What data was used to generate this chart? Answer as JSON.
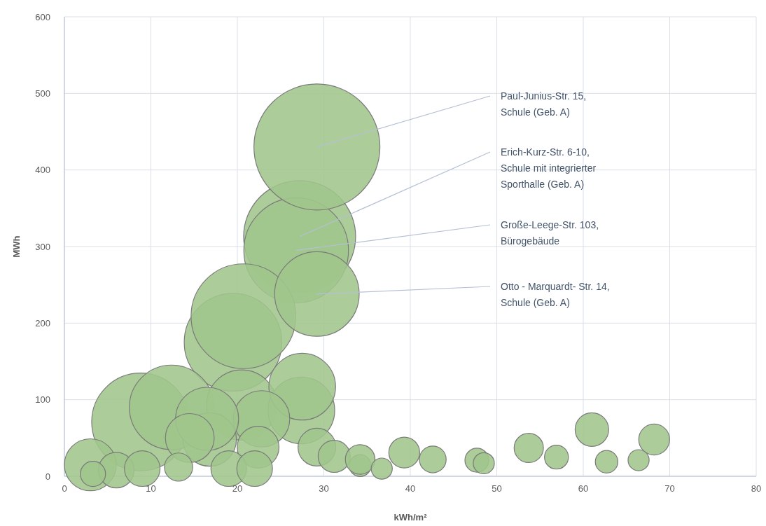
{
  "chart_data": {
    "type": "bubble",
    "xlabel": "kWh/m²",
    "ylabel": "MWh",
    "xlim": [
      0,
      80
    ],
    "ylim": [
      0,
      600
    ],
    "xticks": [
      0,
      10,
      20,
      30,
      40,
      50,
      60,
      70,
      80
    ],
    "yticks": [
      0,
      100,
      200,
      300,
      400,
      500,
      600
    ],
    "grid": true,
    "series": [
      {
        "color": "#a0c68c",
        "x": [
          27.2,
          26.8,
          19.5,
          20.7,
          8.8,
          29.2,
          12.4,
          20.5,
          27.4,
          27.5,
          22.8,
          16.8,
          16.5,
          3,
          14.5,
          22.4,
          29.2,
          6,
          9,
          19,
          22,
          61,
          31.2,
          39.3,
          68.2,
          34.2,
          34.2,
          53.7,
          13.2,
          42.6,
          3.3,
          47.7,
          56.9,
          62.7,
          36.7,
          48.5,
          66.4,
          29.2
        ],
        "values": [
          313,
          295,
          175,
          209,
          71,
          238,
          90,
          93,
          86,
          117,
          75,
          48,
          75,
          15,
          50,
          38,
          38,
          8,
          10,
          10,
          10,
          61,
          26,
          31,
          48,
          14,
          22,
          37,
          12,
          22,
          3,
          21,
          25,
          19,
          10,
          17,
          21,
          430
        ],
        "sizes": [
          0.79,
          0.69,
          0.6,
          0.69,
          0.6,
          0.45,
          0.45,
          0.31,
          0.28,
          0.28,
          0.2,
          0.18,
          0.25,
          0.17,
          0.15,
          0.11,
          0.09,
          0.08,
          0.08,
          0.08,
          0.08,
          0.071,
          0.065,
          0.06,
          0.06,
          0.03,
          0.055,
          0.054,
          0.05,
          0.045,
          0.04,
          0.036,
          0.036,
          0.032,
          0.028,
          0.028,
          0.028,
          1
        ]
      }
    ],
    "annotations": [
      {
        "text": "Paul-Junius-Str. 15,\nSchule (Geb. A)",
        "x": 29.2,
        "y": 430
      },
      {
        "text": "Erich-Kurz-Str. 6-10,\nSchule mit integrierter\nSporthalle (Geb. A)",
        "x": 27.2,
        "y": 313
      },
      {
        "text": "Große-Leege-Str. 103,\nBürogebäude",
        "x": 26.8,
        "y": 295
      },
      {
        "text": "Otto - Marquardt- Str. 14,\nSchule (Geb. A)",
        "x": 29.2,
        "y": 238
      }
    ]
  }
}
